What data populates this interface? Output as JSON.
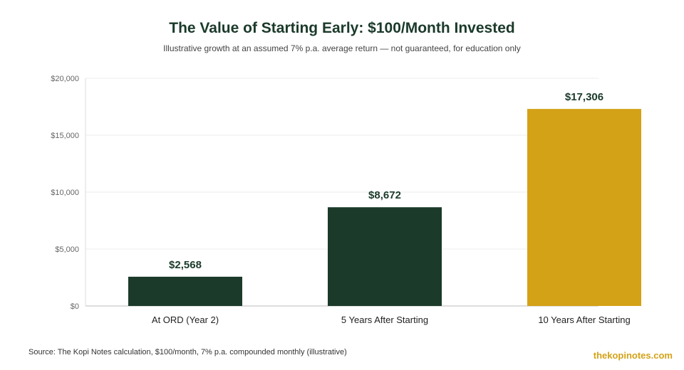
{
  "header": {
    "title": "The Value of Starting Early: $100/Month Invested",
    "subtitle": "Illustrative growth at an assumed 7% p.a. average return — not guaranteed, for education only"
  },
  "footer": {
    "source": "Source: The Kopi Notes calculation, $100/month, 7% p.a. compounded monthly (illustrative)",
    "brand": "thekopinotes.com"
  },
  "chart_data": {
    "type": "bar",
    "title": "The Value of Starting Early: $100/Month Invested",
    "subtitle": "Illustrative growth at an assumed 7% p.a. average return — not guaranteed, for education only",
    "categories": [
      "At ORD (Year 2)",
      "5 Years After Starting",
      "10 Years After Starting"
    ],
    "values": [
      2568,
      8672,
      17306
    ],
    "value_labels": [
      "$2,568",
      "$8,672",
      "$17,306"
    ],
    "colors": [
      "#1b3a2a",
      "#1b3a2a",
      "#d4a217"
    ],
    "ylim": [
      0,
      20000
    ],
    "yticks": [
      0,
      5000,
      10000,
      15000,
      20000
    ],
    "ytick_labels": [
      "$0",
      "$5,000",
      "$10,000",
      "$15,000",
      "$20,000"
    ],
    "xlabel": "",
    "ylabel": "",
    "grid": true,
    "legend": "none"
  }
}
